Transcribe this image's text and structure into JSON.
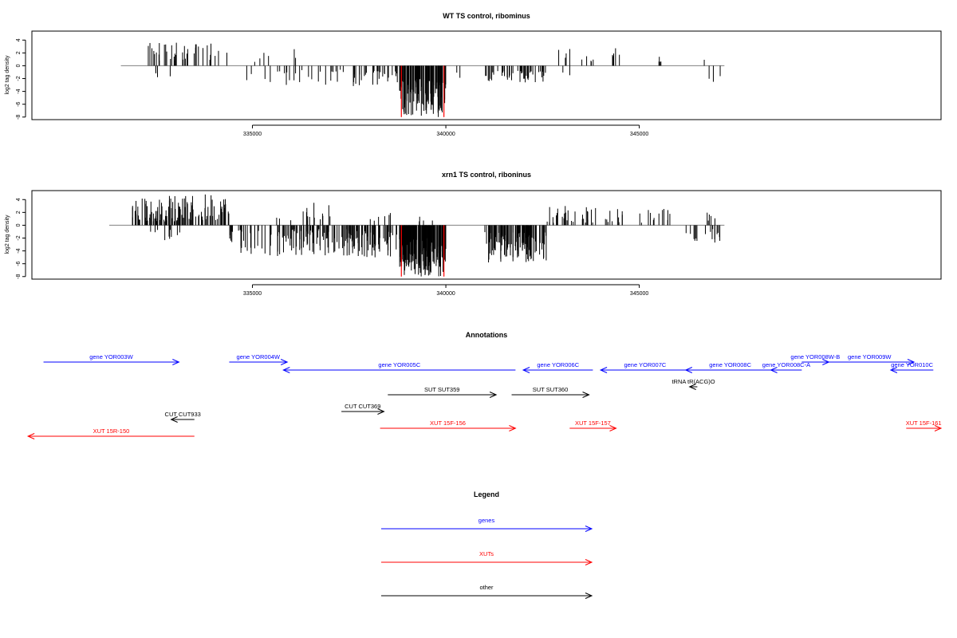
{
  "colors": {
    "gene": "#0000ff",
    "xut": "#ff0000",
    "other": "#000000",
    "bar": "#000000",
    "highlight": "#ff0000",
    "axis": "#000000",
    "baseline": "#808080"
  },
  "chart_data": [
    {
      "type": "bar",
      "title": "WT TS control, ribominus",
      "ylabel": "log2 tag density",
      "xlabel": "",
      "xlim": [
        329300,
        352800
      ],
      "ylim": [
        -8.4,
        5.4
      ],
      "xticks": [
        335000,
        340000,
        345000
      ],
      "yticks": [
        4,
        2,
        0,
        -2,
        -4,
        -6,
        -8
      ],
      "baseline": 0,
      "seed": 7,
      "segments": [
        {
          "from": 332200,
          "to": 334400,
          "sign": 1,
          "count": 38,
          "min": 0.8,
          "max": 3.6
        },
        {
          "from": 332400,
          "to": 332900,
          "sign": -1,
          "count": 4,
          "min": 1.0,
          "max": 2.0
        },
        {
          "from": 334700,
          "to": 337400,
          "sign": -1,
          "count": 26,
          "min": 0.6,
          "max": 3.0
        },
        {
          "from": 335000,
          "to": 337200,
          "sign": 1,
          "count": 6,
          "min": 0.6,
          "max": 2.6
        },
        {
          "from": 337600,
          "to": 338800,
          "sign": -1,
          "count": 30,
          "min": 0.8,
          "max": 3.2
        },
        {
          "from": 338800,
          "to": 340000,
          "sign": -1,
          "count": 130,
          "min": 2.0,
          "max": 8.0
        },
        {
          "from": 340200,
          "to": 340400,
          "sign": -1,
          "count": 2,
          "min": 1.0,
          "max": 2.2
        },
        {
          "from": 341000,
          "to": 342600,
          "sign": -1,
          "count": 45,
          "min": 0.8,
          "max": 2.6
        },
        {
          "from": 342900,
          "to": 344500,
          "sign": 1,
          "count": 14,
          "min": 0.6,
          "max": 3.0
        },
        {
          "from": 343000,
          "to": 343300,
          "sign": -1,
          "count": 2,
          "min": 1.0,
          "max": 1.6
        },
        {
          "from": 345400,
          "to": 345800,
          "sign": 1,
          "count": 4,
          "min": 0.6,
          "max": 1.6
        },
        {
          "from": 346600,
          "to": 347000,
          "sign": 1,
          "count": 1,
          "min": 0.6,
          "max": 1.2
        },
        {
          "from": 346800,
          "to": 347100,
          "sign": -1,
          "count": 3,
          "min": 1.0,
          "max": 2.6
        }
      ],
      "highlight_positions": [
        338850,
        339950
      ],
      "highlight_value": -8.0
    },
    {
      "type": "bar",
      "title": "xrn1 TS control, riboninus",
      "ylabel": "log2 tag density",
      "xlabel": "",
      "xlim": [
        329300,
        352800
      ],
      "ylim": [
        -8.4,
        5.4
      ],
      "xticks": [
        335000,
        340000,
        345000
      ],
      "yticks": [
        4,
        2,
        0,
        -2,
        -4,
        -6,
        -8
      ],
      "baseline": 0,
      "seed": 21,
      "segments": [
        {
          "from": 331900,
          "to": 334400,
          "sign": 1,
          "count": 120,
          "min": 0.6,
          "max": 4.8
        },
        {
          "from": 332200,
          "to": 333200,
          "sign": -1,
          "count": 10,
          "min": 0.6,
          "max": 2.6
        },
        {
          "from": 334400,
          "to": 337500,
          "sign": -1,
          "count": 110,
          "min": 0.6,
          "max": 4.8
        },
        {
          "from": 335600,
          "to": 337200,
          "sign": 1,
          "count": 16,
          "min": 0.6,
          "max": 3.6
        },
        {
          "from": 337400,
          "to": 338800,
          "sign": -1,
          "count": 70,
          "min": 0.8,
          "max": 5.0
        },
        {
          "from": 337800,
          "to": 338600,
          "sign": 1,
          "count": 6,
          "min": 0.6,
          "max": 2.0
        },
        {
          "from": 338800,
          "to": 340000,
          "sign": -1,
          "count": 170,
          "min": 2.0,
          "max": 8.0
        },
        {
          "from": 339300,
          "to": 339900,
          "sign": 1,
          "count": 4,
          "min": 0.6,
          "max": 2.4
        },
        {
          "from": 341000,
          "to": 342600,
          "sign": -1,
          "count": 120,
          "min": 1.0,
          "max": 5.8
        },
        {
          "from": 342600,
          "to": 344600,
          "sign": 1,
          "count": 40,
          "min": 0.4,
          "max": 3.0
        },
        {
          "from": 345000,
          "to": 345800,
          "sign": 1,
          "count": 12,
          "min": 0.4,
          "max": 2.6
        },
        {
          "from": 346200,
          "to": 347100,
          "sign": -1,
          "count": 16,
          "min": 0.6,
          "max": 2.8
        },
        {
          "from": 346700,
          "to": 347000,
          "sign": 1,
          "count": 5,
          "min": 0.6,
          "max": 2.2
        }
      ],
      "highlight_positions": [
        338850,
        339950
      ],
      "highlight_value": -8.0
    }
  ],
  "annotations": {
    "title": "Annotations",
    "xlim": [
      329300,
      352800
    ],
    "features": [
      {
        "label": "gene YOR003W",
        "type": "gene",
        "start": 329600,
        "end": 333100,
        "strand": "+",
        "row": 0
      },
      {
        "label": "gene YOR004W",
        "type": "gene",
        "start": 334400,
        "end": 335900,
        "strand": "+",
        "row": 0
      },
      {
        "label": "gene YOR005C",
        "type": "gene",
        "start": 335800,
        "end": 341800,
        "strand": "-",
        "row": 1
      },
      {
        "label": "gene YOR006C",
        "type": "gene",
        "start": 342000,
        "end": 343800,
        "strand": "-",
        "row": 1
      },
      {
        "label": "gene YOR007C",
        "type": "gene",
        "start": 344000,
        "end": 346300,
        "strand": "-",
        "row": 1
      },
      {
        "label": "gene YOR008C",
        "type": "gene",
        "start": 346200,
        "end": 348500,
        "strand": "-",
        "row": 1
      },
      {
        "label": "gene YOR008C-A",
        "type": "gene",
        "start": 348400,
        "end": 349200,
        "strand": "-",
        "row": 1
      },
      {
        "label": "gene YOR008W-B",
        "type": "gene",
        "start": 349200,
        "end": 349900,
        "strand": "+",
        "row": 0
      },
      {
        "label": "gene YOR009W",
        "type": "gene",
        "start": 349800,
        "end": 352100,
        "strand": "+",
        "row": 0
      },
      {
        "label": "gene YOR010C",
        "type": "gene",
        "start": 351500,
        "end": 352600,
        "strand": "-",
        "row": 1
      },
      {
        "label": "tRNA tR(ACG)O",
        "type": "other",
        "start": 346300,
        "end": 346500,
        "strand": "-",
        "row": 2
      },
      {
        "label": "SUT SUT359",
        "type": "other",
        "start": 338500,
        "end": 341300,
        "strand": "+",
        "row": 3
      },
      {
        "label": "SUT SUT360",
        "type": "other",
        "start": 341700,
        "end": 343700,
        "strand": "+",
        "row": 3
      },
      {
        "label": "CUT CUT369",
        "type": "other",
        "start": 337300,
        "end": 338400,
        "strand": "+",
        "row": 4
      },
      {
        "label": "CUT CUT933",
        "type": "other",
        "start": 332900,
        "end": 333500,
        "strand": "-",
        "row": 5
      },
      {
        "label": "XUT 15F-156",
        "type": "xut",
        "start": 338300,
        "end": 341800,
        "strand": "+",
        "row": 6
      },
      {
        "label": "XUT 15F-157",
        "type": "xut",
        "start": 343200,
        "end": 344400,
        "strand": "+",
        "row": 6
      },
      {
        "label": "XUT 15F-161",
        "type": "xut",
        "start": 351900,
        "end": 352800,
        "strand": "+",
        "row": 6
      },
      {
        "label": "XUT 15R-150",
        "type": "xut",
        "start": 329200,
        "end": 333500,
        "strand": "-",
        "row": 7
      }
    ]
  },
  "legend": {
    "title": "Legend",
    "items": [
      {
        "label": "genes",
        "type": "gene"
      },
      {
        "label": "XUTs",
        "type": "xut"
      },
      {
        "label": "other",
        "type": "other"
      }
    ]
  }
}
